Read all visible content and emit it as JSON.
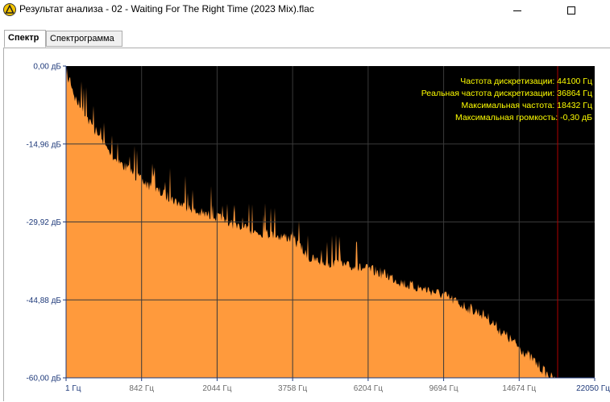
{
  "window": {
    "title": "Результат анализа - 02 - Waiting For The Right Time (2023 Mix).flac",
    "icon": "audio-analyzer-icon"
  },
  "tabs": [
    {
      "label": "Спектр",
      "active": true
    },
    {
      "label": "Спектрограмма",
      "active": false
    }
  ],
  "chart_data": {
    "type": "area",
    "y_ticks": [
      "0,00 дБ",
      "-14,96 дБ",
      "-29,92 дБ",
      "-44,88 дБ",
      "-60,00 дБ"
    ],
    "ylim": [
      -60,
      0
    ],
    "x_ticks": [
      "1 Гц",
      "842 Гц",
      "2044 Гц",
      "3758 Гц",
      "6204 Гц",
      "9694 Гц",
      "14674 Гц",
      "22050 Гц"
    ],
    "xlim": [
      1,
      22050
    ],
    "info": [
      "Частота дискретизации: 44100 Гц",
      "Реальная частота дискретизации: 36864 Гц",
      "Максимальная частота: 18432 Гц",
      "Максимальная громкость: -0,30 дБ"
    ],
    "cutoff_hz": 18432,
    "fill_color": "#ff9a3c",
    "background_color": "#000000",
    "cutoff_color": "#b00000",
    "envelope": {
      "x_hz": [
        1,
        40,
        100,
        200,
        350,
        500,
        842,
        1100,
        1400,
        1700,
        2044,
        2500,
        3000,
        3758,
        4300,
        5000,
        6204,
        7000,
        8000,
        9000,
        9694,
        11000,
        12500,
        13500,
        14674,
        15800,
        16800,
        17600,
        18100,
        18432
      ],
      "db": [
        -3,
        -1,
        -5,
        -8,
        -12,
        -16,
        -21,
        -23,
        -25,
        -27,
        -28,
        -30,
        -31,
        -32,
        -36,
        -37,
        -38,
        -39,
        -41,
        -42,
        -43,
        -45,
        -47,
        -50,
        -53,
        -55,
        -57,
        -58.5,
        -59.5,
        -60
      ]
    }
  }
}
